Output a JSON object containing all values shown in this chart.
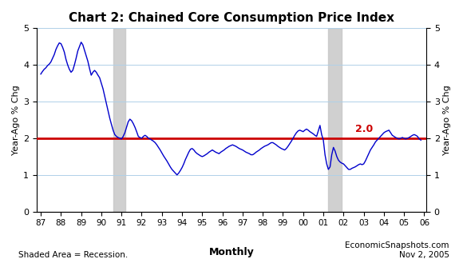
{
  "title": "Chart 2: Chained Core Consumption Price Index",
  "ylabel_left": "Year-Ago % Chg",
  "ylabel_right": "Year-Ago % Chg",
  "xlabel_center": "Monthly",
  "footnote_left": "Shaded Area = Recession.",
  "footnote_right": "EconomicSnapshots.com\nNov 2, 2005",
  "ylim": [
    0,
    5
  ],
  "yticks": [
    0,
    1,
    2,
    3,
    4,
    5
  ],
  "reference_line": 2.0,
  "reference_label": "2.0",
  "line_color": "#0000CC",
  "ref_line_color": "#CC0000",
  "ref_label_color": "#CC0000",
  "recession_color": "#C8C8C8",
  "recession_alpha": 0.85,
  "recession_bands": [
    {
      "start": 1990.583,
      "end": 1991.17
    },
    {
      "start": 2001.25,
      "end": 2001.92
    }
  ],
  "start_year": 1987.0,
  "xlim_end": 2006.1,
  "xtick_labels": [
    "87",
    "88",
    "89",
    "90",
    "91",
    "92",
    "93",
    "94",
    "95",
    "96",
    "97",
    "98",
    "99",
    "00",
    "01",
    "02",
    "03",
    "04",
    "05",
    "06"
  ],
  "xtick_positions": [
    1987,
    1988,
    1989,
    1990,
    1991,
    1992,
    1993,
    1994,
    1995,
    1996,
    1997,
    1998,
    1999,
    2000,
    2001,
    2002,
    2003,
    2004,
    2005,
    2006
  ],
  "values": [
    3.75,
    3.82,
    3.88,
    3.92,
    3.98,
    4.02,
    4.08,
    4.18,
    4.28,
    4.42,
    4.52,
    4.6,
    4.58,
    4.48,
    4.35,
    4.15,
    4.0,
    3.88,
    3.8,
    3.85,
    4.0,
    4.18,
    4.38,
    4.5,
    4.62,
    4.55,
    4.4,
    4.25,
    4.1,
    3.9,
    3.72,
    3.8,
    3.85,
    3.8,
    3.72,
    3.65,
    3.5,
    3.35,
    3.15,
    2.95,
    2.75,
    2.55,
    2.38,
    2.22,
    2.1,
    2.05,
    2.02,
    2.0,
    1.98,
    2.05,
    2.15,
    2.3,
    2.45,
    2.52,
    2.48,
    2.4,
    2.3,
    2.18,
    2.05,
    2.02,
    2.0,
    2.05,
    2.08,
    2.05,
    2.0,
    1.98,
    1.95,
    1.92,
    1.88,
    1.82,
    1.75,
    1.68,
    1.6,
    1.52,
    1.45,
    1.38,
    1.3,
    1.22,
    1.15,
    1.1,
    1.05,
    1.0,
    1.05,
    1.12,
    1.2,
    1.3,
    1.42,
    1.52,
    1.62,
    1.7,
    1.72,
    1.68,
    1.62,
    1.58,
    1.55,
    1.52,
    1.5,
    1.52,
    1.55,
    1.58,
    1.62,
    1.65,
    1.68,
    1.65,
    1.62,
    1.6,
    1.58,
    1.62,
    1.65,
    1.68,
    1.72,
    1.75,
    1.78,
    1.8,
    1.82,
    1.8,
    1.78,
    1.75,
    1.72,
    1.7,
    1.68,
    1.65,
    1.62,
    1.6,
    1.58,
    1.55,
    1.55,
    1.58,
    1.62,
    1.65,
    1.68,
    1.72,
    1.75,
    1.78,
    1.8,
    1.82,
    1.85,
    1.88,
    1.88,
    1.85,
    1.82,
    1.78,
    1.75,
    1.72,
    1.7,
    1.68,
    1.72,
    1.78,
    1.85,
    1.92,
    2.0,
    2.08,
    2.15,
    2.2,
    2.22,
    2.2,
    2.18,
    2.22,
    2.25,
    2.22,
    2.18,
    2.15,
    2.12,
    2.08,
    2.05,
    2.2,
    2.35,
    2.1,
    1.95,
    1.55,
    1.3,
    1.15,
    1.22,
    1.55,
    1.75,
    1.65,
    1.5,
    1.4,
    1.35,
    1.32,
    1.3,
    1.25,
    1.2,
    1.15,
    1.15,
    1.18,
    1.2,
    1.22,
    1.25,
    1.28,
    1.3,
    1.28,
    1.3,
    1.38,
    1.48,
    1.58,
    1.68,
    1.75,
    1.82,
    1.9,
    1.95,
    2.0,
    2.05,
    2.1,
    2.15,
    2.18,
    2.2,
    2.22,
    2.15,
    2.08,
    2.05,
    2.02,
    2.0,
    1.98,
    2.0,
    2.02,
    2.0,
    1.98,
    2.0,
    2.02,
    2.05,
    2.08,
    2.1,
    2.08,
    2.05,
    1.98,
    1.95
  ]
}
